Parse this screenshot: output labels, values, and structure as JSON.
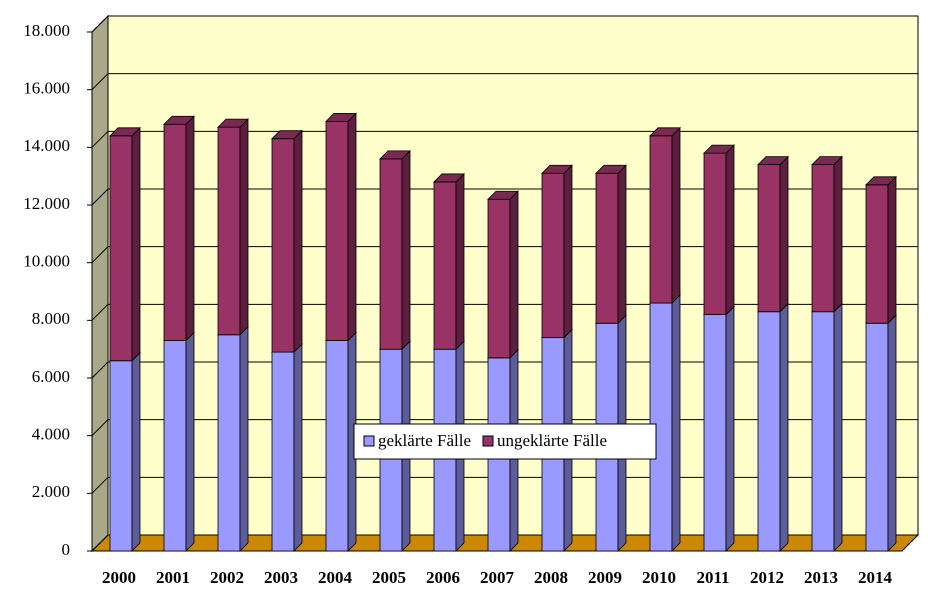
{
  "chart_data": {
    "type": "bar3d_stacked",
    "categories": [
      "2000",
      "2001",
      "2002",
      "2003",
      "2004",
      "2005",
      "2006",
      "2007",
      "2008",
      "2009",
      "2010",
      "2011",
      "2012",
      "2013",
      "2014"
    ],
    "series": [
      {
        "name": "geklärte Fälle",
        "color": "#9999ff",
        "values": [
          6600,
          7300,
          7500,
          6900,
          7300,
          7000,
          7000,
          6700,
          7400,
          7900,
          8600,
          8200,
          8300,
          8300,
          7900
        ]
      },
      {
        "name": "ungeklärte Fälle",
        "color": "#993366",
        "values": [
          7800,
          7500,
          7200,
          7400,
          7600,
          6600,
          5800,
          5500,
          5700,
          5200,
          5800,
          5600,
          5100,
          5100,
          4800
        ]
      }
    ],
    "ylim": [
      0,
      18000
    ],
    "yticks": [
      {
        "value": 0,
        "label": "0"
      },
      {
        "value": 2000,
        "label": "2.000"
      },
      {
        "value": 4000,
        "label": "4.000"
      },
      {
        "value": 6000,
        "label": "6.000"
      },
      {
        "value": 8000,
        "label": "8.000"
      },
      {
        "value": 10000,
        "label": "10.000"
      },
      {
        "value": 12000,
        "label": "12.000"
      },
      {
        "value": 14000,
        "label": "14.000"
      },
      {
        "value": 16000,
        "label": "16.000"
      },
      {
        "value": 18000,
        "label": "18.000"
      }
    ],
    "grid": true
  }
}
